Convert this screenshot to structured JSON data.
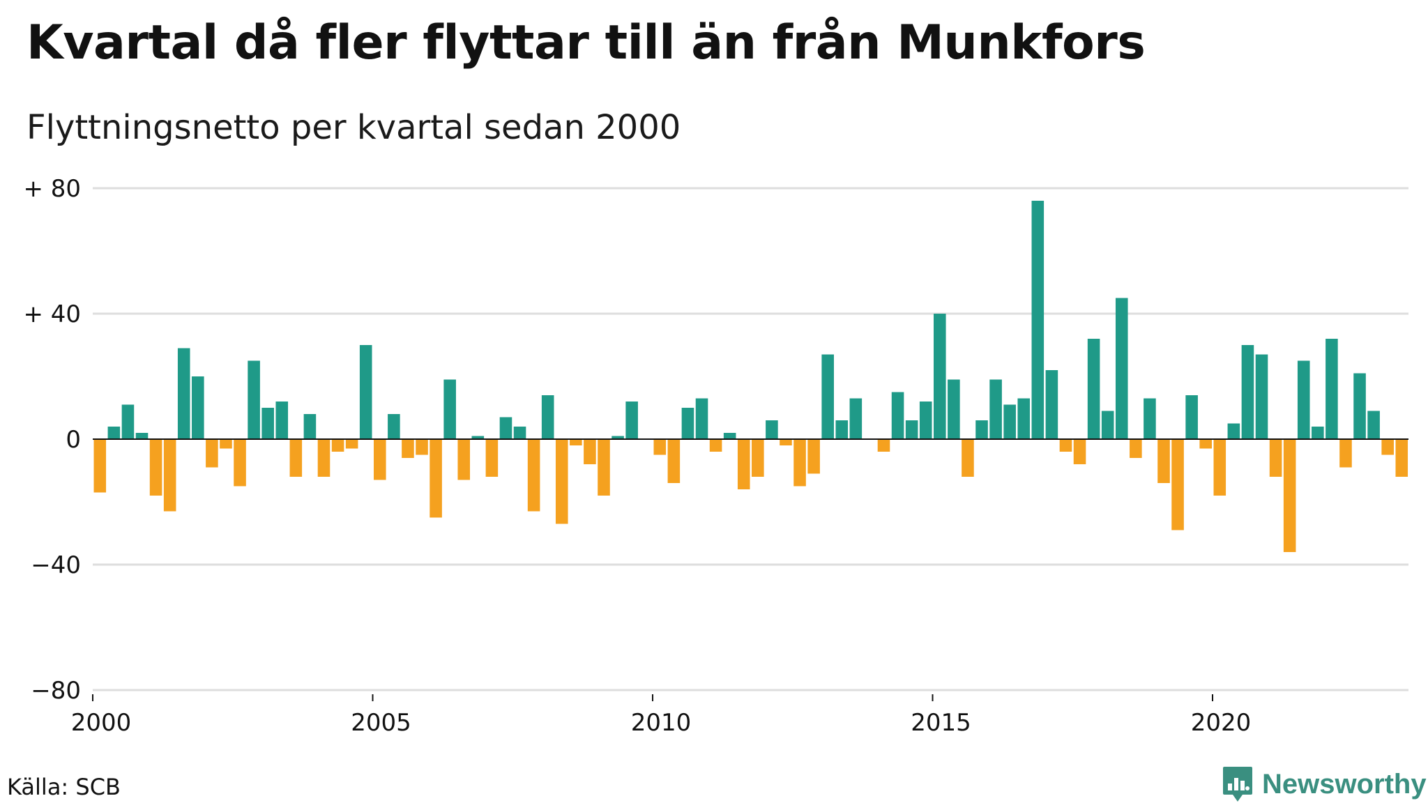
{
  "title": "Kvartal då fler flyttar till än från Munkfors",
  "subtitle": "Flyttningsnetto per kvartal sedan 2000",
  "source": "Källa: SCB",
  "logo_text": "Newsworthy",
  "logo_icon": "bar-chart-badge-icon",
  "colors": {
    "positive": "#1f9a88",
    "negative": "#f5a11f",
    "grid": "#dddddd",
    "logo": "#3a8f80"
  },
  "chart_data": {
    "type": "bar",
    "x_start_year": 2000,
    "quarters_per_year": 4,
    "ylim": [
      -80,
      80
    ],
    "yticks": [
      {
        "value": 80,
        "label": "+ 80"
      },
      {
        "value": 40,
        "label": "+ 40"
      },
      {
        "value": 0,
        "label": "0"
      },
      {
        "value": -40,
        "label": "−40"
      },
      {
        "value": -80,
        "label": "−80"
      }
    ],
    "xticks": [
      {
        "value": 2000,
        "label": "2000"
      },
      {
        "value": 2005,
        "label": "2005"
      },
      {
        "value": 2010,
        "label": "2010"
      },
      {
        "value": 2015,
        "label": "2015"
      },
      {
        "value": 2020,
        "label": "2020"
      }
    ],
    "grid": true,
    "values": [
      -17,
      4,
      11,
      2,
      -18,
      -23,
      29,
      20,
      -9,
      -3,
      -15,
      25,
      10,
      12,
      -12,
      8,
      -12,
      -4,
      -3,
      30,
      -13,
      8,
      -6,
      -5,
      -25,
      19,
      -13,
      1,
      -12,
      7,
      4,
      -23,
      14,
      -27,
      -2,
      -8,
      -18,
      1,
      12,
      0,
      -5,
      -14,
      10,
      13,
      -4,
      2,
      -16,
      -12,
      6,
      -2,
      -15,
      -11,
      27,
      6,
      13,
      0,
      -4,
      15,
      6,
      12,
      40,
      19,
      -12,
      6,
      19,
      11,
      13,
      76,
      22,
      -4,
      -8,
      32,
      9,
      45,
      -6,
      13,
      -14,
      -29,
      14,
      -3,
      -18,
      5,
      30,
      27,
      -12,
      -36,
      25,
      4,
      32,
      -9,
      21,
      9,
      -5,
      -12
    ]
  }
}
